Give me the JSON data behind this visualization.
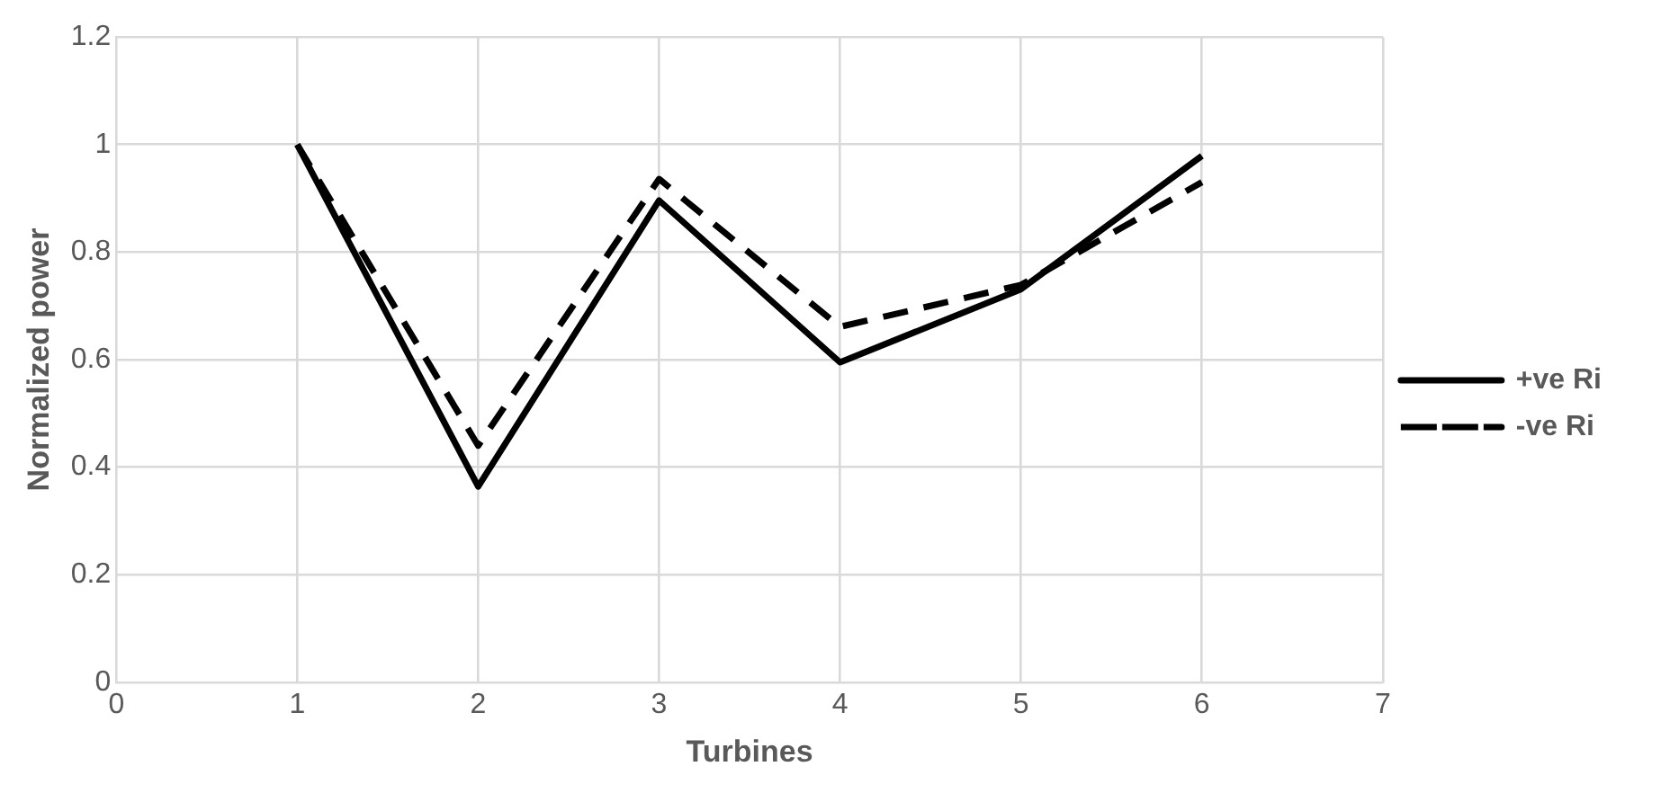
{
  "chart_data": {
    "type": "line",
    "xlabel": "Turbines",
    "ylabel": "Normalized power",
    "x": [
      1,
      2,
      3,
      4,
      5,
      6
    ],
    "series": [
      {
        "name": "+ve Ri",
        "color": "#000000",
        "line_style": "solid",
        "values": [
          1.0,
          0.364,
          0.896,
          0.595,
          0.731,
          0.979
        ]
      },
      {
        "name": "-ve Ri",
        "color": "#000000",
        "line_style": "dashed",
        "values": [
          1.0,
          0.44,
          0.936,
          0.661,
          0.739,
          0.93
        ]
      }
    ],
    "xlim": [
      0,
      7
    ],
    "xticks": [
      0,
      1,
      2,
      3,
      4,
      5,
      6,
      7
    ],
    "ylim": [
      0,
      1.2
    ],
    "yticks": [
      0,
      0.2,
      0.4,
      0.6,
      0.8,
      1,
      1.2
    ],
    "grid": true,
    "legend": "right",
    "marker": "none"
  }
}
